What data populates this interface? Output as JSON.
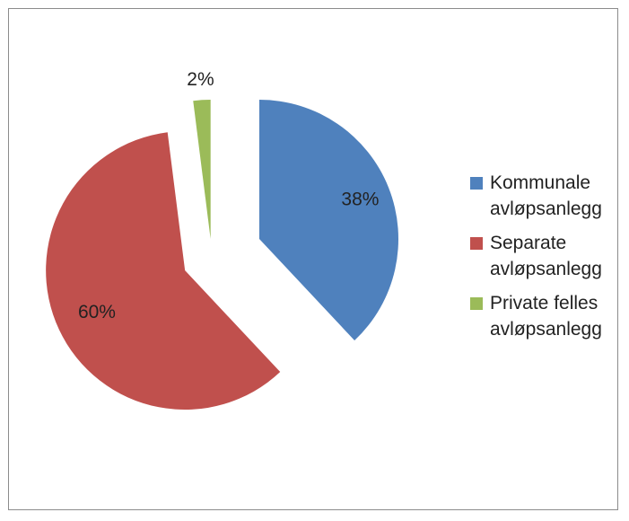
{
  "chart_data": {
    "type": "pie",
    "title": "",
    "exploded": true,
    "legend_position": "right",
    "slices": [
      {
        "label": "Kommunale avløpsanlegg",
        "value": 38,
        "value_label": "38%",
        "color": "#4f81bd"
      },
      {
        "label": "Separate avløpsanlegg",
        "value": 60,
        "value_label": "60%",
        "color": "#c0504d"
      },
      {
        "label": "Private felles avløpsanlegg",
        "value": 2,
        "value_label": "2%",
        "color": "#9bbb59"
      }
    ]
  }
}
